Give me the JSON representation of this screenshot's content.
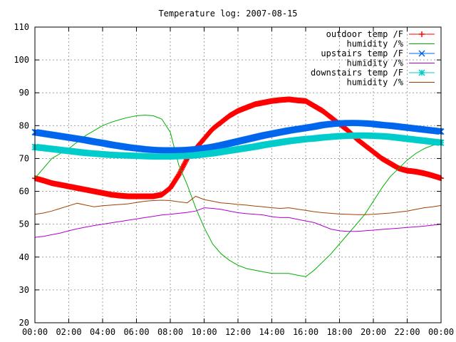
{
  "chart_data": {
    "type": "line",
    "title": "Temperature log: 2007-08-15",
    "xlabel": "",
    "ylabel": "",
    "xlim": [
      "00:00",
      "00:00"
    ],
    "ylim": [
      20,
      110
    ],
    "grid": true,
    "legend_position": "top-right",
    "x_ticks": [
      "00:00",
      "02:00",
      "04:00",
      "06:00",
      "08:00",
      "10:00",
      "12:00",
      "14:00",
      "16:00",
      "18:00",
      "20:00",
      "22:00",
      "00:00"
    ],
    "y_ticks": [
      "20",
      "30",
      "40",
      "50",
      "60",
      "70",
      "80",
      "90",
      "100",
      "110"
    ],
    "x_hours": [
      0,
      0.5,
      1,
      1.5,
      2,
      2.5,
      3,
      3.5,
      4,
      4.5,
      5,
      5.5,
      6,
      6.5,
      7,
      7.5,
      8,
      8.5,
      9,
      9.5,
      10,
      10.5,
      11,
      11.5,
      12,
      12.5,
      13,
      13.5,
      14,
      14.5,
      15,
      15.5,
      16,
      16.5,
      17,
      17.5,
      18,
      18.5,
      19,
      19.5,
      20,
      20.5,
      21,
      21.5,
      22,
      22.5,
      23,
      23.5,
      24
    ],
    "series": [
      {
        "name": "outdoor temp /F",
        "color": "#ff0000",
        "marker": "plus",
        "values": [
          64,
          63.3,
          62.5,
          62,
          61.5,
          61,
          60.5,
          60,
          59.5,
          59,
          58.7,
          58.5,
          58.5,
          58.5,
          58.5,
          59,
          61,
          65,
          70,
          73,
          76,
          79,
          81,
          83,
          84.5,
          85.5,
          86.5,
          87,
          87.5,
          87.8,
          88,
          87.7,
          87.5,
          86,
          84.5,
          82.5,
          80.5,
          78.5,
          76,
          74,
          72,
          70,
          68.5,
          67,
          66.3,
          66,
          65.5,
          64.8,
          64
        ]
      },
      {
        "name": "humidity /%",
        "color": "#00b000",
        "marker": "none",
        "values": [
          64,
          67,
          70,
          71.5,
          73,
          75,
          77,
          78.5,
          80,
          81,
          81.8,
          82.5,
          83,
          83.2,
          83,
          82,
          78,
          68,
          62,
          55,
          49,
          44,
          41,
          39,
          37.5,
          36.5,
          36,
          35.5,
          35,
          35,
          35,
          34.5,
          34,
          36,
          38.5,
          41,
          44,
          47,
          50,
          53,
          57,
          61,
          64.5,
          67,
          69.5,
          71.5,
          73,
          74,
          74.5
        ]
      },
      {
        "name": "upstairs temp /F",
        "color": "#0066ee",
        "marker": "cross",
        "values": [
          78,
          77.6,
          77.2,
          76.8,
          76.4,
          76,
          75.6,
          75.1,
          74.7,
          74.2,
          73.8,
          73.4,
          73.1,
          72.8,
          72.6,
          72.5,
          72.5,
          72.5,
          72.6,
          72.8,
          73.1,
          73.5,
          74,
          74.6,
          75.2,
          75.8,
          76.4,
          77,
          77.5,
          78,
          78.5,
          78.9,
          79.3,
          79.7,
          80.2,
          80.5,
          80.7,
          80.8,
          80.8,
          80.7,
          80.5,
          80.2,
          80,
          79.7,
          79.4,
          79.1,
          78.8,
          78.5,
          78.2
        ]
      },
      {
        "name": "humidity /%",
        "color": "#b000d0",
        "marker": "none",
        "values": [
          46,
          46.3,
          46.8,
          47.3,
          48,
          48.6,
          49.1,
          49.6,
          50,
          50.4,
          50.8,
          51.2,
          51.6,
          52,
          52.4,
          52.8,
          53,
          53.3,
          53.6,
          54,
          55,
          54.8,
          54.5,
          54,
          53.5,
          53.2,
          53,
          52.8,
          52.3,
          52,
          52,
          51.5,
          51,
          50.5,
          49.5,
          48.5,
          48,
          47.8,
          47.8,
          48,
          48.2,
          48.4,
          48.6,
          48.8,
          49,
          49.2,
          49.4,
          49.7,
          50
        ]
      },
      {
        "name": "downstairs temp /F",
        "color": "#00cccc",
        "marker": "star",
        "values": [
          73.5,
          73.2,
          72.9,
          72.6,
          72.3,
          72,
          71.7,
          71.5,
          71.3,
          71.1,
          71,
          70.9,
          70.8,
          70.7,
          70.6,
          70.6,
          70.6,
          70.7,
          70.8,
          71,
          71.3,
          71.6,
          72,
          72.4,
          72.8,
          73.2,
          73.6,
          74.1,
          74.5,
          74.9,
          75.3,
          75.6,
          75.9,
          76.1,
          76.4,
          76.6,
          76.8,
          76.9,
          77,
          77,
          76.9,
          76.8,
          76.6,
          76.3,
          76,
          75.7,
          75.4,
          75.1,
          74.8
        ]
      },
      {
        "name": "humidity /%",
        "color": "#a04000",
        "marker": "none",
        "values": [
          53,
          53.4,
          54,
          54.8,
          55.6,
          56.4,
          55.8,
          55.3,
          55.6,
          55.8,
          56,
          56.2,
          56.6,
          57,
          57.2,
          57.3,
          57.2,
          56.8,
          56.5,
          58.5,
          57.5,
          57,
          56.5,
          56.3,
          56,
          55.8,
          55.5,
          55.3,
          55,
          54.8,
          55,
          54.6,
          54.2,
          53.8,
          53.5,
          53.3,
          53.1,
          53,
          52.9,
          52.9,
          53,
          53.2,
          53.4,
          53.7,
          54,
          54.5,
          55,
          55.3,
          55.7
        ]
      }
    ]
  }
}
